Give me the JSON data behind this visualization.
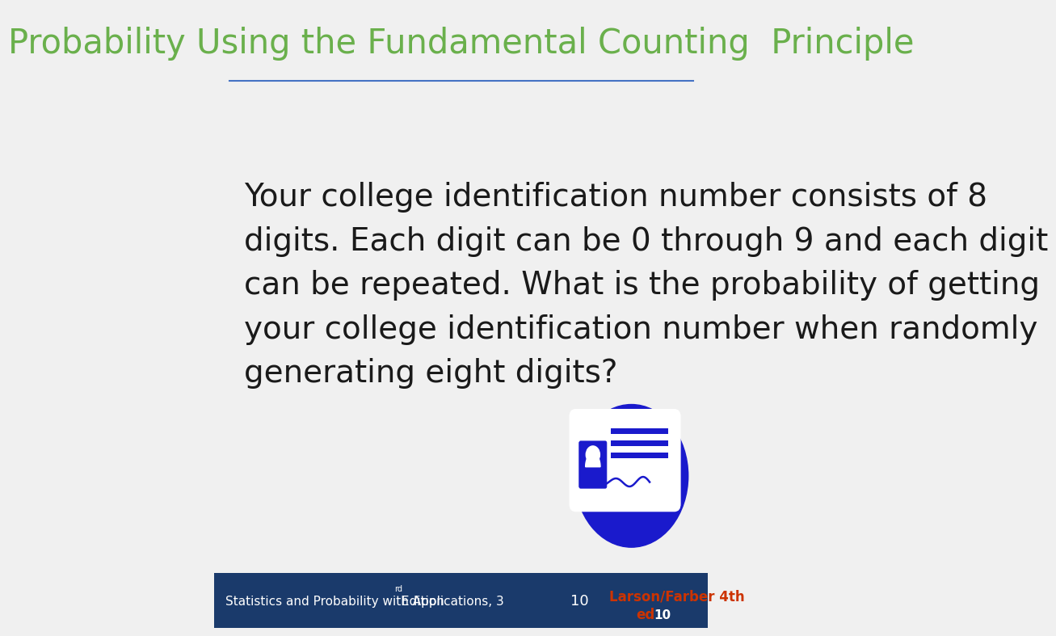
{
  "title": "Probability Using the Fundamental Counting  Principle",
  "title_color": "#6ab04c",
  "title_underline_color": "#4472c4",
  "bg_color": "#f0f0f0",
  "footer_bg_color": "#1a3a6b",
  "footer_text": "Statistics and Probability with Applications, 3",
  "footer_superscript": "rd",
  "footer_text2": " Edition",
  "footer_right_text": "Larson/Farber 4th\ned",
  "footer_right_color": "#cc3300",
  "footer_page_num": "10",
  "footer_page_color": "#ffffff",
  "body_text": "Your college identification number consists of 8\ndigits. Each digit can be 0 through 9 and each digit\ncan be repeated. What is the probability of getting\nyour college identification number when randomly\ngenerating eight digits?",
  "body_text_color": "#1a1a1a",
  "body_fontsize": 28,
  "icon_circle_color": "#1a1acc",
  "card_color": "#ffffff",
  "card_lines_color": "#1a1acc"
}
